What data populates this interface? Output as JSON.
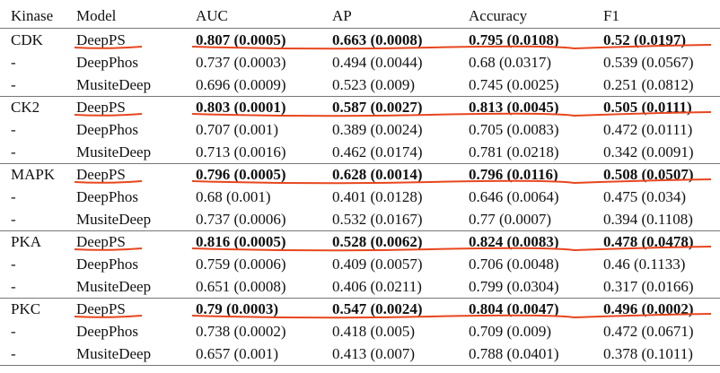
{
  "table": {
    "header": [
      "Kinase",
      "Model",
      "AUC",
      "AP",
      "Accuracy",
      "F1"
    ],
    "rows": [
      [
        "CDK",
        "DeepPS",
        "0.807 (0.0005)",
        "0.663 (0.0008)",
        "0.795 (0.0108)",
        "0.52 (0.0197)"
      ],
      [
        "-",
        "DeepPhos",
        "0.737 (0.0003)",
        "0.494 (0.0044)",
        "0.68 (0.0317)",
        "0.539 (0.0567)"
      ],
      [
        "-",
        "MusiteDeep",
        "0.696 (0.0009)",
        "0.523 (0.009)",
        "0.745 (0.0025)",
        "0.251 (0.0812)"
      ],
      [
        "CK2",
        "DeepPS",
        "0.803 (0.0001)",
        "0.587 (0.0027)",
        "0.813 (0.0045)",
        "0.505 (0.0111)"
      ],
      [
        "-",
        "DeepPhos",
        "0.707 (0.001)",
        "0.389 (0.0024)",
        "0.705 (0.0083)",
        "0.472 (0.0111)"
      ],
      [
        "-",
        "MusiteDeep",
        "0.713 (0.0016)",
        "0.462 (0.0174)",
        "0.781 (0.0218)",
        "0.342 (0.0091)"
      ],
      [
        "MAPK",
        "DeepPS",
        "0.796 (0.0005)",
        "0.628 (0.0014)",
        "0.796 (0.0116)",
        "0.508 (0.0507)"
      ],
      [
        "-",
        "DeepPhos",
        "0.68 (0.001)",
        "0.401 (0.0128)",
        "0.646 (0.0064)",
        "0.475 (0.034)"
      ],
      [
        "-",
        "MusiteDeep",
        "0.737 (0.0006)",
        "0.532 (0.0167)",
        "0.77 (0.0007)",
        "0.394 (0.1108)"
      ],
      [
        "PKA",
        "DeepPS",
        "0.816 (0.0005)",
        "0.528 (0.0062)",
        "0.824 (0.0083)",
        "0.478 (0.0478)"
      ],
      [
        "-",
        "DeepPhos",
        "0.759 (0.0006)",
        "0.409 (0.0057)",
        "0.706 (0.0048)",
        "0.46 (0.1133)"
      ],
      [
        "-",
        "MusiteDeep",
        "0.651 (0.0008)",
        "0.406 (0.0211)",
        "0.799 (0.0304)",
        "0.317 (0.0166)"
      ],
      [
        "PKC",
        "DeepPS",
        "0.79 (0.0003)",
        "0.547 (0.0024)",
        "0.804 (0.0047)",
        "0.496 (0.0002)"
      ],
      [
        "-",
        "DeepPhos",
        "0.738 (0.0002)",
        "0.418 (0.005)",
        "0.709 (0.009)",
        "0.472 (0.0671)"
      ],
      [
        "-",
        "MusiteDeep",
        "0.657 (0.001)",
        "0.413 (0.007)",
        "0.788 (0.0401)",
        "0.378 (0.1011)"
      ]
    ]
  }
}
